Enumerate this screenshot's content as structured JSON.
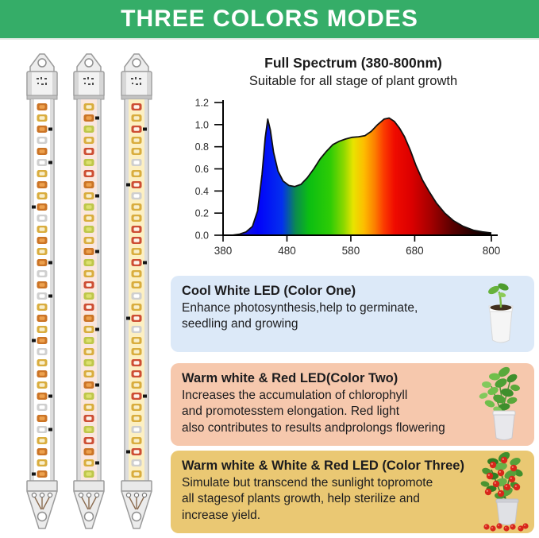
{
  "banner": {
    "title": "THREE COLORS MODES",
    "bg": "#35ad68",
    "text_color": "#ffffff"
  },
  "chart_data": {
    "type": "area",
    "title": "Full Spectrum (380-800nm)",
    "subtitle": "Suitable for all stage of plant growth",
    "xlabel": "",
    "ylabel": "",
    "x_range": [
      380,
      800
    ],
    "ylim": [
      0,
      1.2
    ],
    "grid": false,
    "x_ticks": [
      380,
      480,
      580,
      680,
      800
    ],
    "y_ticks": [
      0.0,
      0.2,
      0.4,
      0.6,
      0.8,
      1.0,
      1.2
    ],
    "points": [
      [
        380,
        0
      ],
      [
        394,
        0
      ],
      [
        406,
        0.01
      ],
      [
        416,
        0.03
      ],
      [
        426,
        0.08
      ],
      [
        434,
        0.22
      ],
      [
        441,
        0.55
      ],
      [
        446,
        0.88
      ],
      [
        450,
        1.05
      ],
      [
        454,
        0.95
      ],
      [
        459,
        0.75
      ],
      [
        466,
        0.58
      ],
      [
        474,
        0.49
      ],
      [
        483,
        0.45
      ],
      [
        492,
        0.44
      ],
      [
        502,
        0.46
      ],
      [
        512,
        0.52
      ],
      [
        522,
        0.6
      ],
      [
        532,
        0.69
      ],
      [
        542,
        0.76
      ],
      [
        552,
        0.82
      ],
      [
        562,
        0.85
      ],
      [
        572,
        0.87
      ],
      [
        582,
        0.885
      ],
      [
        592,
        0.89
      ],
      [
        602,
        0.9
      ],
      [
        612,
        0.94
      ],
      [
        622,
        1.0
      ],
      [
        632,
        1.05
      ],
      [
        640,
        1.06
      ],
      [
        648,
        1.03
      ],
      [
        656,
        0.97
      ],
      [
        664,
        0.89
      ],
      [
        673,
        0.77
      ],
      [
        682,
        0.63
      ],
      [
        692,
        0.5
      ],
      [
        702,
        0.4
      ],
      [
        714,
        0.29
      ],
      [
        727,
        0.2
      ],
      [
        741,
        0.13
      ],
      [
        756,
        0.08
      ],
      [
        772,
        0.045
      ],
      [
        786,
        0.03
      ],
      [
        800,
        0.02
      ]
    ],
    "gradient": [
      [
        0,
        "#2b2bb4"
      ],
      [
        0.13,
        "#0202fa"
      ],
      [
        0.22,
        "#0330ee"
      ],
      [
        0.27,
        "#0b8a50"
      ],
      [
        0.32,
        "#0bbe12"
      ],
      [
        0.4,
        "#2ecc05"
      ],
      [
        0.45,
        "#8cd800"
      ],
      [
        0.485,
        "#e8e400"
      ],
      [
        0.525,
        "#fdbd00"
      ],
      [
        0.565,
        "#fc8000"
      ],
      [
        0.6,
        "#fb3a00"
      ],
      [
        0.64,
        "#ef0b00"
      ],
      [
        0.7,
        "#dc0000"
      ],
      [
        0.77,
        "#a80000"
      ],
      [
        0.85,
        "#5d0000"
      ],
      [
        0.93,
        "#250000"
      ],
      [
        1,
        "#000000"
      ]
    ]
  },
  "boxes": [
    {
      "title": "Cool White LED (Color One)",
      "body": "Enhance photosynthesis,help to germinate,\nseedling and growing",
      "bg": "#dce9f8",
      "plant_icon": "seedling-pot-icon"
    },
    {
      "title": "Warm white & Red LED(Color Two)",
      "body": "Increases the accumulation of chlorophyll\nand promotesstem elongation. Red light\nalso contributes to results andprolongs flowering",
      "bg": "#f6c8ad",
      "plant_icon": "leafy-plant-pot-icon"
    },
    {
      "title": "Warm white & White & Red LED (Color Three)",
      "body": "Simulate but transcend the sunlight topromote\nall stagesof plants growth, help sterilize and\nincrease yield.",
      "bg": "#eac873",
      "plant_icon": "tomato-plant-pot-icon"
    }
  ],
  "strips": {
    "lefts": [
      31,
      90,
      150
    ],
    "palette": {
      "gold": [
        "#d9ad3e",
        "#f8eecb"
      ],
      "orange": [
        "#cb7426",
        "#eda14e"
      ],
      "white": [
        "#cfcfcf",
        "#ffffff"
      ],
      "red": [
        "#cd4e34",
        "#fdf3ea"
      ],
      "yellowgreen": [
        "#bec74a",
        "#dde070"
      ]
    },
    "items": [
      {
        "name": "led-strip-color-one-cool-white",
        "pcb": "#ffffff",
        "sequence": [
          {
            "led": "orange"
          },
          {
            "led": "gold"
          },
          {
            "led": "orange",
            "chip": "right"
          },
          {
            "led": "white"
          },
          {
            "led": "orange"
          },
          {
            "led": "white",
            "chip": "right"
          },
          {
            "led": "gold"
          },
          {
            "led": "orange"
          },
          {
            "led": "gold"
          },
          {
            "led": "orange",
            "chip": "left"
          },
          {
            "led": "white"
          },
          {
            "led": "gold"
          }
        ]
      },
      {
        "name": "led-strip-color-two-warm-white-red",
        "pcb": "#fae7df",
        "sequence": [
          {
            "led": "gold"
          },
          {
            "led": "orange",
            "chip": "right"
          },
          {
            "led": "yellowgreen"
          },
          {
            "led": "gold"
          },
          {
            "led": "red"
          },
          {
            "led": "yellowgreen"
          },
          {
            "led": "red"
          },
          {
            "led": "orange"
          },
          {
            "led": "gold",
            "chip": "right"
          },
          {
            "led": "yellowgreen"
          },
          {
            "led": "gold"
          },
          {
            "led": "yellowgreen"
          }
        ]
      },
      {
        "name": "led-strip-color-three-mixed",
        "pcb": "#fcefc2",
        "sequence": [
          {
            "led": "red"
          },
          {
            "led": "gold"
          },
          {
            "led": "red",
            "chip": "right"
          },
          {
            "led": "gold"
          },
          {
            "led": "gold"
          },
          {
            "led": "white"
          },
          {
            "led": "gold"
          },
          {
            "led": "red",
            "chip": "left"
          },
          {
            "led": "white"
          },
          {
            "led": "gold"
          },
          {
            "led": "gold"
          },
          {
            "led": "red"
          }
        ]
      }
    ]
  }
}
